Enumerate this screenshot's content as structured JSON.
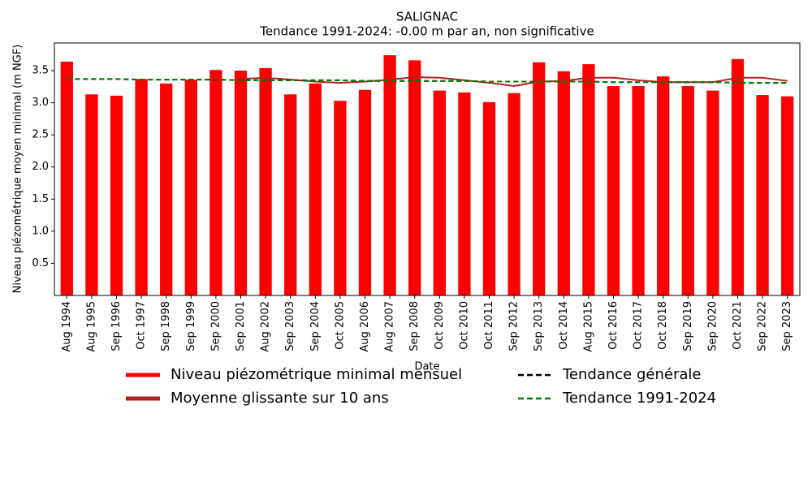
{
  "chart_data": {
    "type": "bar",
    "title": "SALIGNAC",
    "subtitle": "Tendance 1991-2024: -0.00 m par an, non significative",
    "xlabel": "Date",
    "ylabel": "Niveau piézométrique moyen minimal (m NGF)",
    "categories": [
      "Aug 1994",
      "Aug 1995",
      "Sep 1996",
      "Oct 1997",
      "Sep 1998",
      "Sep 1999",
      "Sep 2000",
      "Sep 2001",
      "Aug 2002",
      "Sep 2003",
      "Sep 2004",
      "Oct 2005",
      "Aug 2006",
      "Aug 2007",
      "Sep 2008",
      "Oct 2009",
      "Oct 2010",
      "Oct 2011",
      "Sep 2012",
      "Sep 2013",
      "Oct 2014",
      "Aug 2015",
      "Oct 2016",
      "Oct 2017",
      "Oct 2018",
      "Sep 2019",
      "Sep 2020",
      "Oct 2021",
      "Sep 2022",
      "Sep 2023"
    ],
    "series": [
      {
        "name": "Niveau piézométrique minimal mensuel",
        "color": "#ff0000",
        "style": "bar",
        "values": [
          3.64,
          3.13,
          3.11,
          3.37,
          3.3,
          3.36,
          3.51,
          3.5,
          3.54,
          3.13,
          3.3,
          3.03,
          3.2,
          3.74,
          3.66,
          3.19,
          3.16,
          3.01,
          3.15,
          3.63,
          3.49,
          3.6,
          3.26,
          3.26,
          3.41,
          3.26,
          3.19,
          3.68,
          3.12,
          3.1
        ]
      },
      {
        "name": "Moyenne glissante sur 10 ans",
        "color": "#b22222",
        "style": "line",
        "values": [
          null,
          null,
          null,
          null,
          null,
          null,
          null,
          3.37,
          3.39,
          3.36,
          3.33,
          3.31,
          3.33,
          3.36,
          3.4,
          3.39,
          3.35,
          3.31,
          3.26,
          3.33,
          3.34,
          3.39,
          3.39,
          3.35,
          3.32,
          3.32,
          3.32,
          3.39,
          3.39,
          3.34
        ]
      },
      {
        "name": "Tendance générale",
        "color": "#000000",
        "style": "dashed",
        "values": [
          3.37,
          3.37,
          3.37,
          3.36,
          3.36,
          3.36,
          3.36,
          3.35,
          3.35,
          3.35,
          3.35,
          3.35,
          3.34,
          3.34,
          3.34,
          3.34,
          3.34,
          3.33,
          3.33,
          3.33,
          3.33,
          3.33,
          3.32,
          3.32,
          3.32,
          3.32,
          3.32,
          3.31,
          3.31,
          3.31
        ]
      },
      {
        "name": "Tendance 1991-2024",
        "color": "#008000",
        "style": "dashed",
        "values": [
          3.37,
          3.37,
          3.37,
          3.36,
          3.36,
          3.36,
          3.36,
          3.35,
          3.35,
          3.35,
          3.35,
          3.35,
          3.34,
          3.34,
          3.34,
          3.34,
          3.34,
          3.33,
          3.33,
          3.33,
          3.33,
          3.33,
          3.32,
          3.32,
          3.32,
          3.32,
          3.32,
          3.31,
          3.31,
          3.31
        ]
      }
    ],
    "ylim": [
      0,
      3.93
    ],
    "yticks": [
      0.5,
      {
        "value": 1,
        "label": "1.0"
      },
      1.5,
      {
        "value": 2,
        "label": "2.0"
      },
      2.5,
      {
        "value": 3,
        "label": "3.0"
      },
      3.5
    ],
    "grid": false,
    "legend": "lower center"
  }
}
